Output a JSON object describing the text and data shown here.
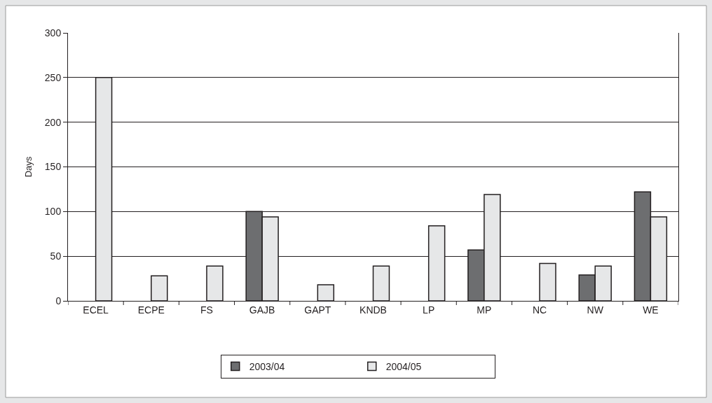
{
  "chart_data": {
    "type": "bar",
    "ylabel": "Days",
    "categories": [
      "ECEL",
      "ECPE",
      "FS",
      "GAJB",
      "GAPT",
      "KNDB",
      "LP",
      "MP",
      "NC",
      "NW",
      "WE"
    ],
    "series": [
      {
        "name": "2003/04",
        "color": "#6d6e70",
        "values": [
          null,
          null,
          null,
          100,
          null,
          null,
          null,
          57,
          null,
          29,
          122
        ]
      },
      {
        "name": "2004/05",
        "color": "#e6e7e8",
        "values": [
          250,
          28,
          39,
          94,
          18,
          39,
          84,
          119,
          42,
          39,
          94
        ]
      }
    ],
    "ylim": [
      0,
      300
    ],
    "yticks": [
      0,
      50,
      100,
      150,
      200,
      250,
      300
    ],
    "grid": "y",
    "legend": "bottom"
  }
}
